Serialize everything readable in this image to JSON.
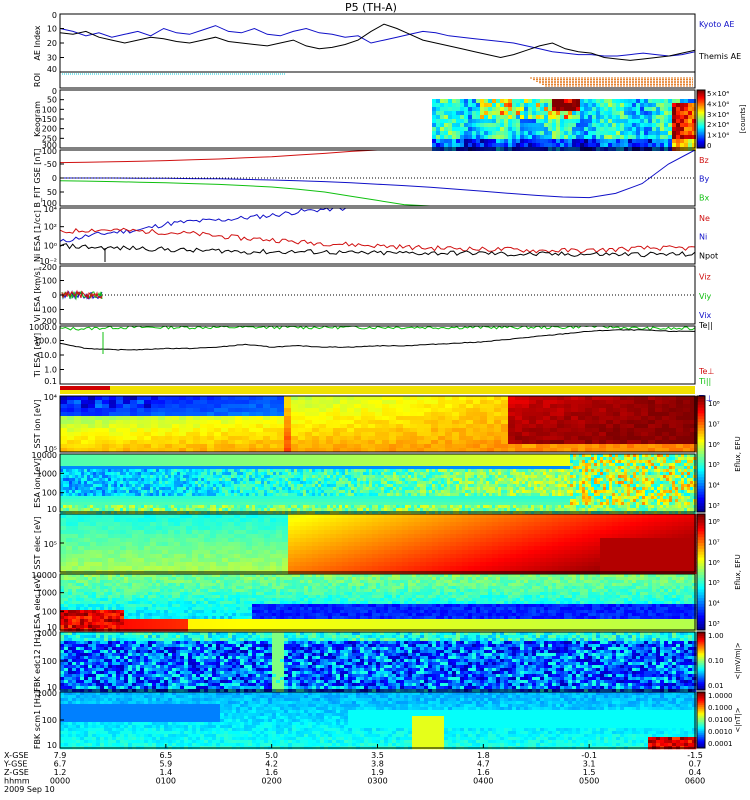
{
  "title": "P5 (TH-A)",
  "colors": {
    "black": "#000000",
    "blue": "#1010c8",
    "red": "#d01010",
    "green": "#10c010",
    "cyan": "#00c8d8",
    "orange": "#e07010",
    "yellow": "#f0e000"
  },
  "chart_data": [
    {
      "type": "line",
      "ylabel": "AE Index",
      "ylim": [
        0,
        40
      ],
      "yticks": [
        "0",
        "10",
        "20",
        "30",
        "40"
      ],
      "legend": [
        "Kyoto AE",
        "Themis AE"
      ],
      "series": [
        {
          "name": "Kyoto AE",
          "color": "#1010c8",
          "values": [
            30,
            28,
            25,
            27,
            24,
            26,
            28,
            25,
            30,
            27,
            26,
            29,
            32,
            28,
            27,
            30,
            26,
            25,
            28,
            30,
            27,
            26,
            24,
            25,
            20,
            22,
            24,
            26,
            28,
            27,
            25,
            24,
            23,
            22,
            21,
            20,
            18,
            16,
            14,
            13,
            12,
            12,
            11,
            11,
            12,
            13,
            12,
            11,
            12,
            14
          ]
        },
        {
          "name": "Themis AE",
          "color": "#000000",
          "values": [
            27,
            26,
            28,
            24,
            22,
            20,
            22,
            24,
            23,
            21,
            20,
            22,
            24,
            21,
            20,
            19,
            18,
            20,
            22,
            18,
            16,
            17,
            19,
            22,
            28,
            33,
            30,
            26,
            22,
            20,
            18,
            16,
            14,
            12,
            10,
            12,
            15,
            18,
            20,
            16,
            14,
            13,
            10,
            9,
            8,
            9,
            10,
            11,
            13,
            15
          ]
        }
      ]
    },
    {
      "type": "bar",
      "ylabel": "ROI"
    },
    {
      "type": "heatmap",
      "ylabel": "Keogram",
      "yticks": [
        "0",
        "50",
        "100",
        "150",
        "200",
        "250",
        "300"
      ],
      "colorbar": {
        "ticks": [
          "5×10⁴",
          "4×10⁴",
          "3×10⁴",
          "2×10⁴",
          "1×10⁴",
          "0"
        ],
        "label": "[counts]"
      }
    },
    {
      "type": "line",
      "ylabel": "B_FIT GSE [nT]",
      "ylim": [
        -100,
        100
      ],
      "yticks": [
        "-100",
        "-50",
        "0",
        "50",
        "100"
      ],
      "legend": [
        "Bz",
        "By",
        "Bx"
      ],
      "series": [
        {
          "name": "Bz",
          "color": "#d01010",
          "values": [
            55,
            56,
            58,
            60,
            62,
            65,
            68,
            72,
            76,
            82,
            88,
            95,
            100,
            100,
            100,
            100,
            100,
            100,
            100,
            100,
            100,
            100,
            100,
            100,
            100
          ]
        },
        {
          "name": "By",
          "color": "#1010c8",
          "values": [
            0,
            0,
            0,
            -1,
            -1,
            -2,
            -3,
            -5,
            -7,
            -10,
            -13,
            -17,
            -22,
            -27,
            -33,
            -40,
            -47,
            -55,
            -62,
            -68,
            -70,
            -55,
            -20,
            50,
            100
          ]
        },
        {
          "name": "Bx",
          "color": "#10c010",
          "values": [
            -10,
            -11,
            -13,
            -15,
            -17,
            -20,
            -23,
            -27,
            -32,
            -40,
            -50,
            -65,
            -80,
            -95,
            -100,
            -100,
            -100,
            -100,
            -100,
            -100,
            -100,
            -100,
            -100,
            -100,
            -100
          ]
        }
      ]
    },
    {
      "type": "line",
      "ylabel": "Ni ESA [1/cc]",
      "ylog": true,
      "yticks": [
        "10⁴",
        "10²",
        "10⁰",
        "10⁻²"
      ],
      "legend": [
        "Ne",
        "Ni",
        "Npot"
      ],
      "series": [
        {
          "name": "Ni",
          "color": "#1010c8",
          "values": [
            -0.5,
            0,
            0.3,
            0.5,
            1,
            1.2,
            1.3,
            1.5,
            1.7,
            2,
            2.2,
            2.3,
            2.5,
            2.7,
            2.8,
            3,
            3.1,
            3.2,
            3.3,
            3.4,
            3.5,
            3.6,
            3.7,
            3.9,
            4
          ]
        },
        {
          "name": "Ne",
          "color": "#d01010",
          "values": [
            0.3,
            0.5,
            0.5,
            0.4,
            0.3,
            0.2,
            0,
            -0.2,
            -0.3,
            -0.5,
            -0.6,
            -0.7,
            -0.8,
            -0.9,
            -1,
            -1,
            -1.1,
            -1.1,
            -1.2,
            -1.2,
            -1.2,
            -1.1,
            -1,
            -1,
            -1
          ]
        },
        {
          "name": "Npot",
          "color": "#000000",
          "values": [
            -0.8,
            -0.9,
            -1,
            -1,
            -1.1,
            -1.2,
            -1.2,
            -1.3,
            -1.3,
            -1.3,
            -1.3,
            -1.4,
            -1.4,
            -1.4,
            -1.4,
            -1.4,
            -1.4,
            -1.5,
            -1.5,
            -1.5,
            -1.5,
            -1.5,
            -1.5,
            -1.5,
            -1.5
          ]
        }
      ]
    },
    {
      "type": "scatter",
      "ylabel": "Vi ESA [km/s]",
      "ylim": [
        -300,
        300
      ],
      "yticks": [
        "-200",
        "-100",
        "0",
        "100",
        "200"
      ],
      "legend": [
        "Viz",
        "Viy",
        "Vix"
      ]
    },
    {
      "type": "line",
      "ylabel": "Ti ESA [eV]",
      "ylog": true,
      "yticks": [
        "1000.0",
        "100.0",
        "10.0",
        "1.0",
        "0.1"
      ],
      "legend": [
        "Te||",
        "Te⊥",
        "Ti||",
        "Ti⊥"
      ],
      "series": [
        {
          "name": "Ti||",
          "color": "#10c010",
          "values": [
            3,
            3,
            3.1,
            3.1,
            3.1,
            3.1,
            3.1,
            3.1,
            3.1,
            3.1,
            3.1,
            3.1,
            3.1,
            3.1,
            3.1,
            3.1,
            3.1,
            3.1,
            3.1,
            3.1,
            3.2,
            3.1,
            3,
            3,
            3
          ]
        },
        {
          "name": "Te||",
          "color": "#000000",
          "values": [
            1.9,
            1.5,
            1.4,
            1.4,
            1.5,
            1.5,
            1.6,
            1.8,
            1.6,
            1.7,
            1.6,
            1.6,
            1.7,
            1.7,
            1.8,
            1.9,
            2,
            2.2,
            2.4,
            2.6,
            2.8,
            2.9,
            2.9,
            2.8,
            2.8
          ]
        }
      ]
    },
    {
      "type": "bar",
      "ylabel": "mode"
    },
    {
      "type": "heatmap",
      "ylabel": "SST ion [eV]",
      "yticks": [
        "10⁴",
        "10⁵"
      ]
    },
    {
      "type": "heatmap",
      "ylabel": "ESA ion [eV]",
      "yticks": [
        "10000",
        "1000",
        "100",
        "10"
      ]
    },
    {
      "type": "heatmap",
      "ylabel": "SST elec [eV]",
      "yticks": [
        "10⁵"
      ]
    },
    {
      "type": "heatmap",
      "ylabel": "ESA elec [eV]",
      "yticks": [
        "10000",
        "1000",
        "100",
        "10"
      ]
    },
    {
      "type": "heatmap",
      "ylabel": "FBK edc12 [Hz]",
      "yticks": [
        "1000",
        "100",
        "10"
      ],
      "colorbar": {
        "ticks": [
          "1.00",
          "0.10",
          "0.01"
        ],
        "label": "<|mV/m|>"
      }
    },
    {
      "type": "heatmap",
      "ylabel": "FBK scm1 [Hz]",
      "yticks": [
        "1000",
        "100",
        "10"
      ],
      "colorbar": {
        "ticks": [
          "1.0000",
          "0.1000",
          "0.0100",
          "0.0010",
          "0.0001"
        ],
        "label": "<|nT|>"
      }
    }
  ],
  "eflux_bar": {
    "ticks": [
      "10⁸",
      "10⁷",
      "10⁶",
      "10⁵",
      "10⁴",
      "10³",
      "10⁸",
      "10⁷",
      "10⁶",
      "10⁵",
      "10⁴",
      "10³"
    ],
    "label": "Eflux, EFU"
  },
  "xaxis": {
    "row_labels": [
      "X-GSE",
      "Y-GSE",
      "Z-GSE",
      "hhmm",
      "2009 Sep 10"
    ],
    "columns": [
      {
        "x": "7.9",
        "y": "6.7",
        "z": "1.2",
        "t": "0000"
      },
      {
        "x": "6.5",
        "y": "5.9",
        "z": "1.4",
        "t": "0100"
      },
      {
        "x": "5.0",
        "y": "4.2",
        "z": "1.6",
        "t": "0200"
      },
      {
        "x": "3.5",
        "y": "3.8",
        "z": "1.9",
        "t": "0300"
      },
      {
        "x": "1.8",
        "y": "4.7",
        "z": "1.6",
        "t": "0400"
      },
      {
        "x": "-0.1",
        "y": "3.1",
        "z": "1.5",
        "t": "0500"
      },
      {
        "x": "-1.5",
        "y": "0.7",
        "z": "0.4",
        "t": "0600"
      }
    ]
  }
}
